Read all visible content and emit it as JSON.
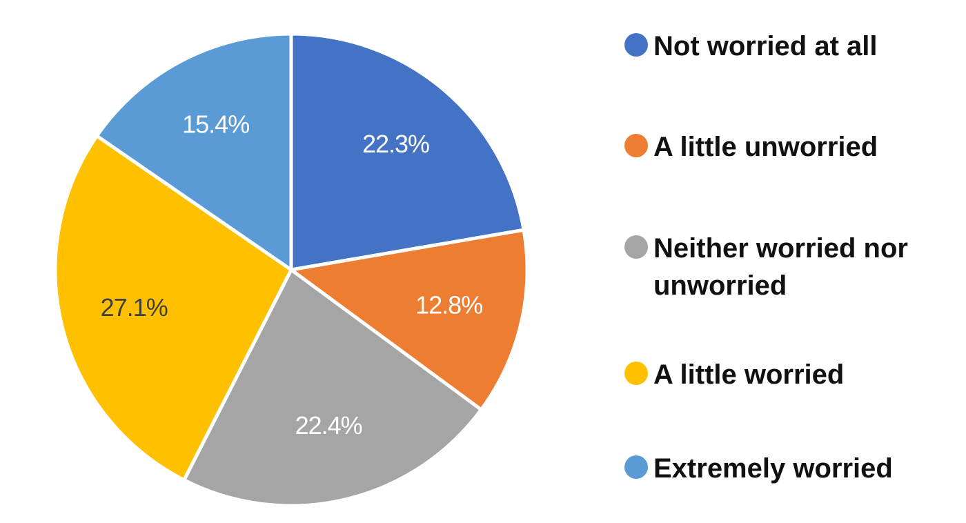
{
  "chart_data": {
    "type": "pie",
    "title": "",
    "categories": [
      "Not worried at all",
      "A little unworried",
      "Neither worried nor unworried",
      "A little worried",
      "Extremely worried"
    ],
    "values": [
      22.3,
      12.8,
      22.4,
      27.1,
      15.4
    ],
    "value_labels": [
      "22.3%",
      "12.8%",
      "22.4%",
      "27.1%",
      "15.4%"
    ],
    "colors": [
      "#4472C4",
      "#ED7D31",
      "#A5A5A5",
      "#FFC000",
      "#5B9BD5"
    ],
    "start_angle": "12 o'clock",
    "direction": "clockwise",
    "legend_position": "right"
  },
  "legend": {
    "items": [
      {
        "label": "Not worried at all",
        "color": "#4472C4"
      },
      {
        "label": "A little unworried",
        "color": "#ED7D31"
      },
      {
        "label": "Neither worried nor unworried",
        "color": "#A5A5A5"
      },
      {
        "label": "A little worried",
        "color": "#FFC000"
      },
      {
        "label": "Extremely worried",
        "color": "#5B9BD5"
      }
    ]
  }
}
